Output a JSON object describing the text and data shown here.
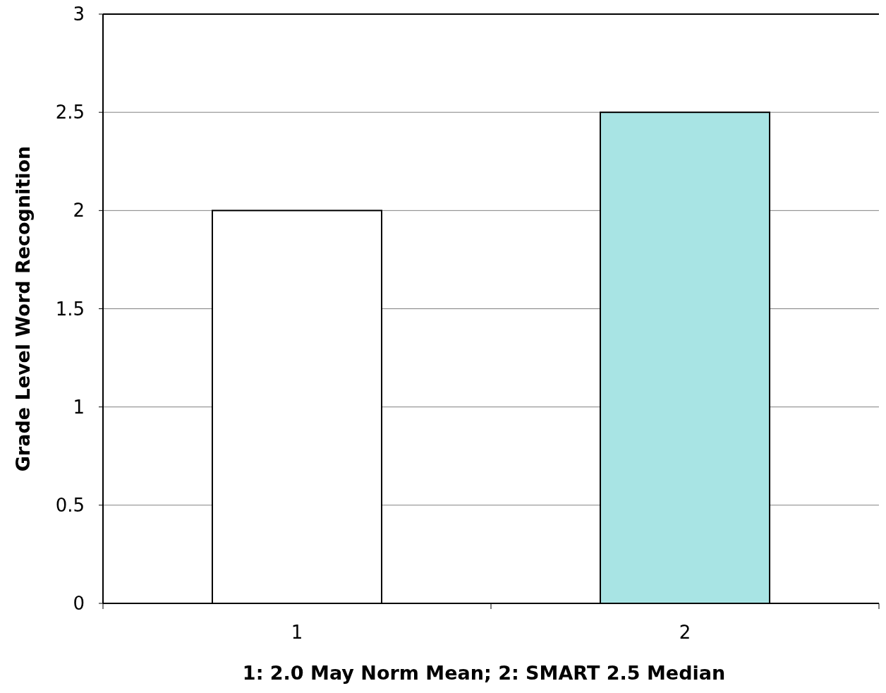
{
  "chart_data": {
    "type": "bar",
    "xlabel": "1: 2.0 May Norm Mean; 2: SMART 2.5 Median",
    "ylabel": "Grade Level Word Recognition",
    "categories": [
      "1",
      "2"
    ],
    "values": [
      2,
      2.5
    ],
    "colors": [
      "#ffffff",
      "#a8e4e4"
    ],
    "ylim": [
      0,
      3
    ],
    "yticks": [
      0,
      0.5,
      1,
      1.5,
      2,
      2.5,
      3
    ],
    "grid": "y"
  }
}
